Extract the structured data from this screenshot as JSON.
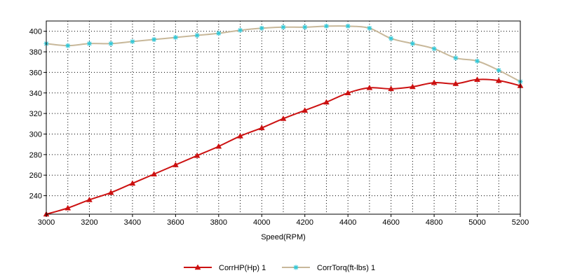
{
  "chart_data": {
    "type": "line",
    "xlabel": "Speed(RPM)",
    "ylabel": "",
    "xlim": [
      3000,
      5200
    ],
    "ylim": [
      222,
      410
    ],
    "x_ticks": [
      3000,
      3200,
      3400,
      3600,
      3800,
      4000,
      4200,
      4400,
      4600,
      4800,
      5000,
      5200
    ],
    "y_ticks": [
      240,
      260,
      280,
      300,
      320,
      340,
      360,
      380,
      400
    ],
    "grid": true,
    "legend_position": "bottom",
    "x": [
      3000,
      3100,
      3200,
      3300,
      3400,
      3500,
      3600,
      3700,
      3800,
      3900,
      4000,
      4100,
      4200,
      4300,
      4400,
      4500,
      4600,
      4700,
      4800,
      4900,
      5000,
      5100,
      5200
    ],
    "series": [
      {
        "name": "CorrHP(Hp)  1",
        "color": "#cc1111",
        "marker": "triangle",
        "values": [
          222,
          228,
          236,
          243,
          252,
          261,
          270,
          279,
          288,
          298,
          306,
          315,
          323,
          331,
          340,
          345,
          344,
          346,
          350,
          349,
          353,
          352,
          347
        ]
      },
      {
        "name": "CorrTorq(ft-lbs)  1",
        "color": "#c8b89a",
        "marker_color": "#30c8d8",
        "marker": "star",
        "values": [
          388,
          386,
          388,
          388,
          390,
          392,
          394,
          396,
          398,
          401,
          403,
          404,
          404,
          405,
          405,
          403,
          393,
          388,
          383,
          374,
          371,
          362,
          351
        ]
      }
    ]
  }
}
